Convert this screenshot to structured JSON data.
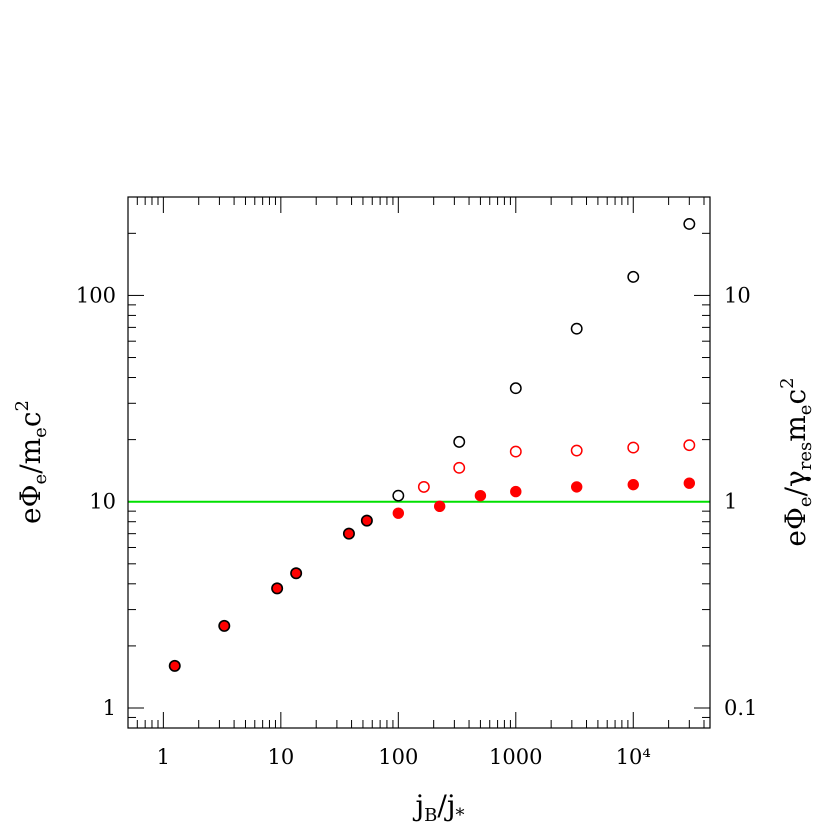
{
  "chart_data": {
    "type": "scatter",
    "x_scale": "log",
    "y_scale": "log",
    "xlim": [
      0.5,
      45000
    ],
    "ylim": [
      0.8,
      300
    ],
    "right_ylim": [
      0.08,
      30
    ],
    "x_ticks": [
      {
        "value": 1,
        "label": "1"
      },
      {
        "value": 10,
        "label": "10"
      },
      {
        "value": 100,
        "label": "100"
      },
      {
        "value": 1000,
        "label": "1000"
      },
      {
        "value": 10000,
        "label": "10⁴"
      }
    ],
    "y_ticks": [
      {
        "value": 1,
        "label": "1"
      },
      {
        "value": 10,
        "label": "10"
      },
      {
        "value": 100,
        "label": "100"
      }
    ],
    "right_y_ticks": [
      {
        "value": 0.1,
        "label": "0.1"
      },
      {
        "value": 1,
        "label": "1"
      },
      {
        "value": 10,
        "label": "10"
      }
    ],
    "xlabel": {
      "main": "j",
      "sub1": "B",
      "sep": "/j",
      "sub2": "*"
    },
    "ylabel": {
      "p1": "eΦ",
      "s1": "e",
      "p2": "/m",
      "s2": "e",
      "p3": "c",
      "sup": "2"
    },
    "right_ylabel": {
      "p1": "eΦ",
      "s1": "e",
      "p2": "/γ",
      "s2": "res",
      "p3": "m",
      "s3": "e",
      "p4": "c",
      "sup": "2"
    },
    "reference_line": {
      "y": 10,
      "color": "#00e000"
    },
    "series": [
      {
        "marker": "open-circle",
        "color": "#000000",
        "points": [
          [
            100,
            10.7
          ],
          [
            330,
            19.5
          ],
          [
            1000,
            35.5
          ],
          [
            3300,
            69
          ],
          [
            10000,
            123
          ],
          [
            30000,
            222
          ]
        ]
      },
      {
        "marker": "open-circle",
        "color": "#ff0000",
        "points": [
          [
            165,
            11.8
          ],
          [
            330,
            14.6
          ],
          [
            1000,
            17.5
          ],
          [
            3300,
            17.7
          ],
          [
            10000,
            18.3
          ],
          [
            30000,
            18.8
          ]
        ]
      },
      {
        "marker": "filled-circle-dark-edge",
        "color": "#ff0000",
        "edge": "#000000",
        "points": [
          [
            1.25,
            1.6
          ],
          [
            3.3,
            2.5
          ],
          [
            9.3,
            3.8
          ],
          [
            13.5,
            4.5
          ],
          [
            38,
            7.0
          ],
          [
            54,
            8.1
          ]
        ]
      },
      {
        "marker": "filled-circle",
        "color": "#ff0000",
        "points": [
          [
            100,
            8.8
          ],
          [
            225,
            9.5
          ],
          [
            500,
            10.7
          ],
          [
            1000,
            11.2
          ],
          [
            3300,
            11.8
          ],
          [
            10000,
            12.1
          ],
          [
            30000,
            12.3
          ]
        ]
      }
    ]
  }
}
